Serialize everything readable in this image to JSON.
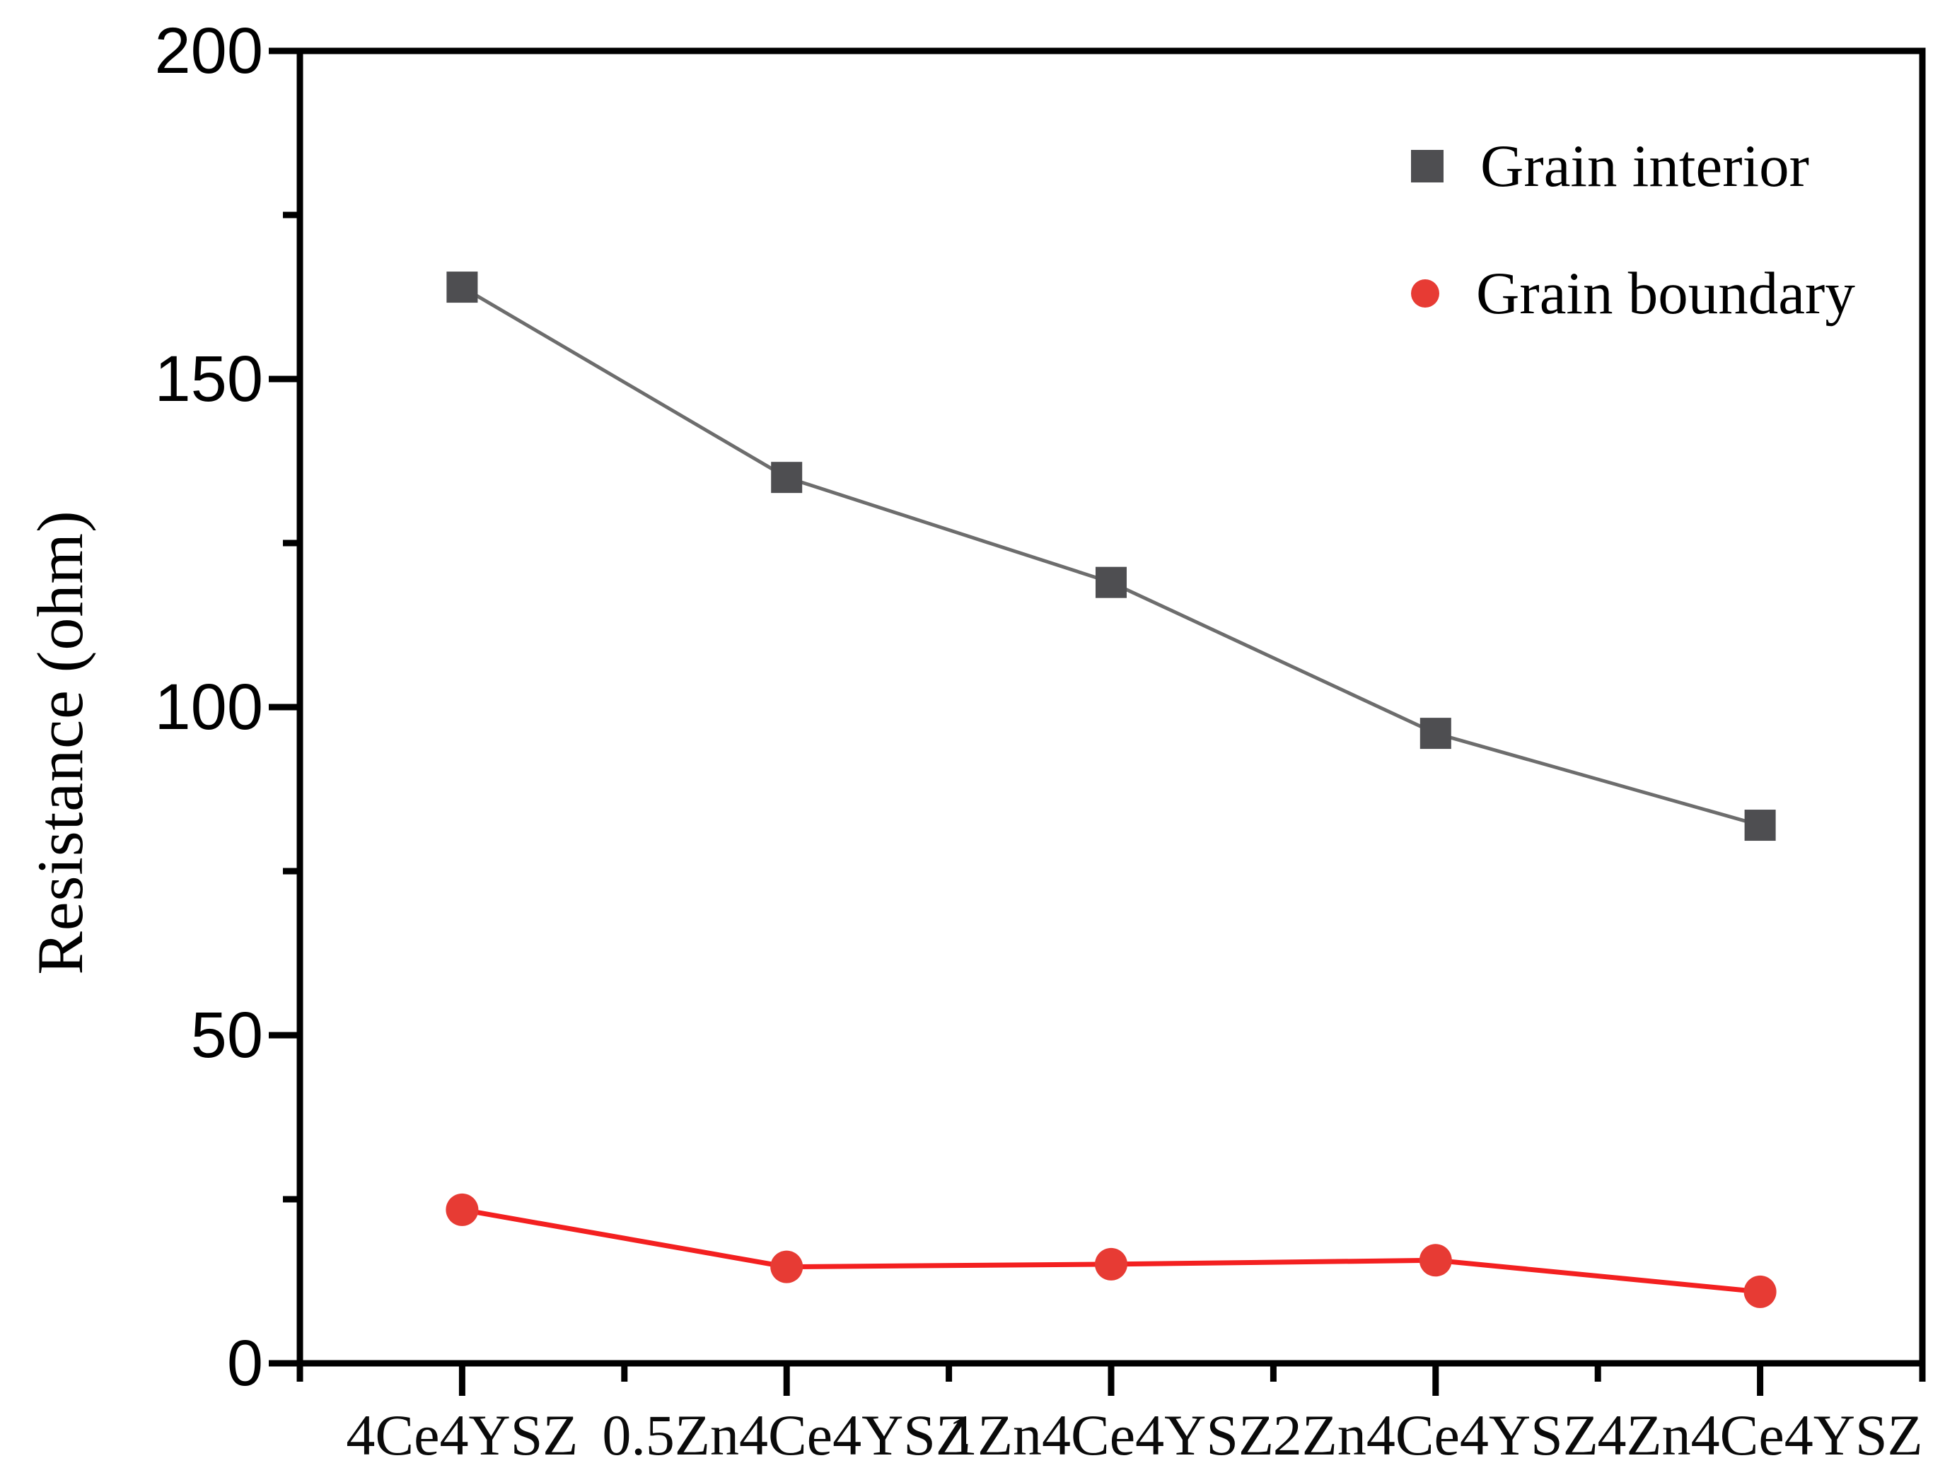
{
  "page": {
    "background": "#ffffff"
  },
  "chart_data": {
    "type": "line",
    "title": "",
    "xlabel": "",
    "ylabel": "Resistance (ohm)",
    "categories": [
      "4Ce4YSZ",
      "0.5Zn4Ce4YSZ",
      "1Zn4Ce4YSZ",
      "2Zn4Ce4YSZ",
      "4Zn4Ce4YSZ"
    ],
    "series": [
      {
        "name": "Grain interior",
        "marker": "square",
        "marker_color": "#4e4e51",
        "line_color": "#6d6d6d",
        "values": [
          164,
          135,
          119,
          96,
          82
        ]
      },
      {
        "name": "Grain boundary",
        "marker": "circle",
        "marker_color": "#e73b34",
        "line_color": "#f32020",
        "values": [
          23.4,
          14.7,
          15.1,
          15.7,
          10.9
        ]
      }
    ],
    "ylim": [
      0,
      200
    ],
    "yticks": [
      0,
      50,
      100,
      150,
      200
    ],
    "y_minor_step": 25,
    "grid": false,
    "legend_position": "top-right",
    "axis_color": "#000000"
  }
}
